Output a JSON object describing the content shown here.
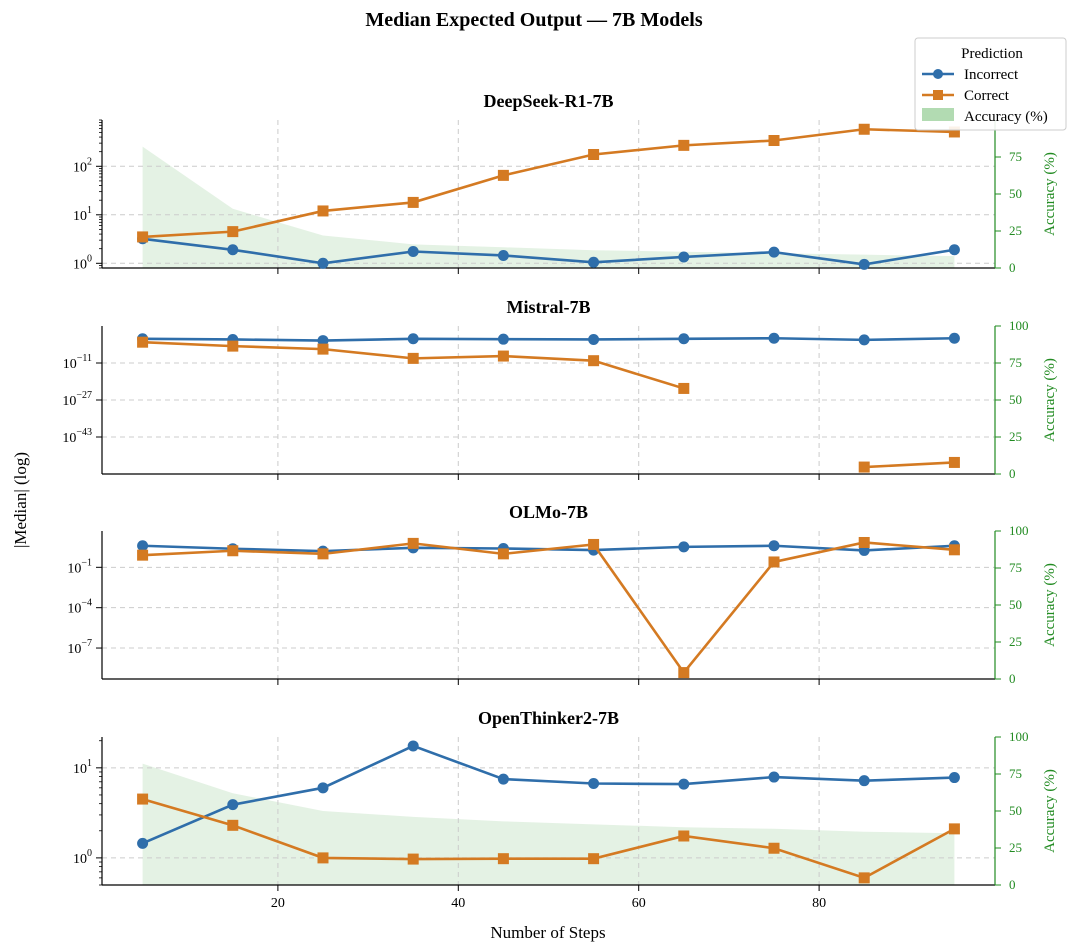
{
  "figure": {
    "title": "Median Expected Output — 7B Models",
    "xlabel": "Number of Steps",
    "ylabel": "|Median| (log)",
    "y2label": "Accuracy (%)"
  },
  "legend": {
    "title": "Prediction",
    "items": [
      {
        "label": "Incorrect",
        "color": "#2f6eaa",
        "marker": "circle"
      },
      {
        "label": "Correct",
        "color": "#d47a22",
        "marker": "square"
      },
      {
        "label": "Accuracy (%)",
        "color": "#b2dbb2",
        "marker": "area"
      }
    ]
  },
  "chart_data": [
    {
      "type": "line",
      "title": "DeepSeek-R1-7B",
      "x": [
        5,
        15,
        25,
        35,
        45,
        55,
        65,
        75,
        85,
        95
      ],
      "series": [
        {
          "name": "Incorrect",
          "values": [
            3.2,
            1.9,
            1.0,
            1.75,
            1.45,
            1.05,
            1.35,
            1.7,
            0.95,
            1.9
          ]
        },
        {
          "name": "Correct",
          "values": [
            3.5,
            4.5,
            12,
            18,
            65,
            175,
            270,
            340,
            580,
            510
          ]
        }
      ],
      "accuracy": [
        82,
        40,
        22,
        16,
        14,
        12,
        11,
        10,
        9,
        8
      ],
      "ylog": true,
      "ylim": [
        0.8,
        900
      ],
      "yticks": [
        {
          "v": 1,
          "b": "10",
          "e": "0"
        },
        {
          "v": 10,
          "b": "10",
          "e": "1"
        },
        {
          "v": 100,
          "b": "10",
          "e": "2"
        }
      ],
      "accuracy_ticks": [
        "0",
        "25",
        "50",
        "75"
      ]
    },
    {
      "type": "line",
      "title": "Mistral-7B",
      "x": [
        5,
        15,
        25,
        35,
        45,
        55,
        65,
        75,
        85,
        95
      ],
      "series": [
        {
          "name": "Incorrect",
          "values": [
            0.3,
            0.15,
            0.05,
            0.3,
            0.2,
            0.15,
            0.3,
            0.5,
            0.1,
            0.5
          ]
        },
        {
          "name": "Correct",
          "values": [
            0.01,
            0.0002,
            1e-05,
            1e-09,
            1e-08,
            1e-10,
            1e-22,
            null,
            1e-56,
            1e-54
          ]
        }
      ],
      "accuracy": [
        0,
        0,
        0,
        0,
        0,
        0,
        0,
        0,
        0,
        0
      ],
      "ylog": true,
      "ylim": [
        1e-59,
        100000.0
      ],
      "yticks": [
        {
          "v": 1e-11,
          "b": "10",
          "e": "−11"
        },
        {
          "v": 1e-27,
          "b": "10",
          "e": "−27"
        },
        {
          "v": 1e-43,
          "b": "10",
          "e": "−43"
        }
      ],
      "accuracy_ticks": [
        "0",
        "25",
        "50",
        "75",
        "100"
      ]
    },
    {
      "type": "line",
      "title": "OLMo-7B",
      "x": [
        5,
        15,
        25,
        35,
        45,
        55,
        65,
        75,
        85,
        95
      ],
      "series": [
        {
          "name": "Incorrect",
          "values": [
            4,
            2.4,
            1.6,
            2.8,
            2.5,
            1.9,
            3.3,
            4,
            1.8,
            4
          ]
        },
        {
          "name": "Correct",
          "values": [
            0.8,
            1.7,
            1.0,
            6,
            1.0,
            5,
            1.5e-09,
            0.25,
            7,
            2
          ]
        }
      ],
      "accuracy": [
        0,
        0,
        0,
        0,
        0,
        0,
        0,
        0,
        0,
        0
      ],
      "ylog": true,
      "ylim": [
        5e-10,
        50
      ],
      "yticks": [
        {
          "v": 0.1,
          "b": "10",
          "e": "−1"
        },
        {
          "v": 0.0001,
          "b": "10",
          "e": "−4"
        },
        {
          "v": 1e-07,
          "b": "10",
          "e": "−7"
        }
      ],
      "accuracy_ticks": [
        "0",
        "25",
        "50",
        "75",
        "100"
      ]
    },
    {
      "type": "line",
      "title": "OpenThinker2-7B",
      "x": [
        5,
        15,
        25,
        35,
        45,
        55,
        65,
        75,
        85,
        95
      ],
      "series": [
        {
          "name": "Incorrect",
          "values": [
            1.45,
            3.9,
            6.0,
            17.5,
            7.5,
            6.7,
            6.6,
            7.9,
            7.2,
            7.8
          ]
        },
        {
          "name": "Correct",
          "values": [
            4.5,
            2.3,
            1.0,
            0.97,
            0.98,
            0.98,
            1.75,
            1.28,
            0.6,
            2.1
          ]
        }
      ],
      "accuracy": [
        82,
        62,
        50,
        46,
        43,
        41,
        39,
        38,
        36,
        35
      ],
      "ylog": true,
      "ylim": [
        0.5,
        22
      ],
      "yticks": [
        {
          "v": 1,
          "b": "10",
          "e": "0"
        },
        {
          "v": 10,
          "b": "10",
          "e": "1"
        }
      ],
      "accuracy_ticks": [
        "0",
        "25",
        "50",
        "75",
        "100"
      ]
    }
  ],
  "x_axis": {
    "ticks": [
      "20",
      "40",
      "60",
      "80"
    ],
    "tick_values": [
      20,
      40,
      60,
      80
    ],
    "xlim": [
      0.5,
      99.5
    ]
  },
  "colors": {
    "incorrect": "#2f6eaa",
    "correct": "#d47a22",
    "accuracy_fill": "#b2dbb2",
    "accuracy_axis": "#228B22"
  }
}
